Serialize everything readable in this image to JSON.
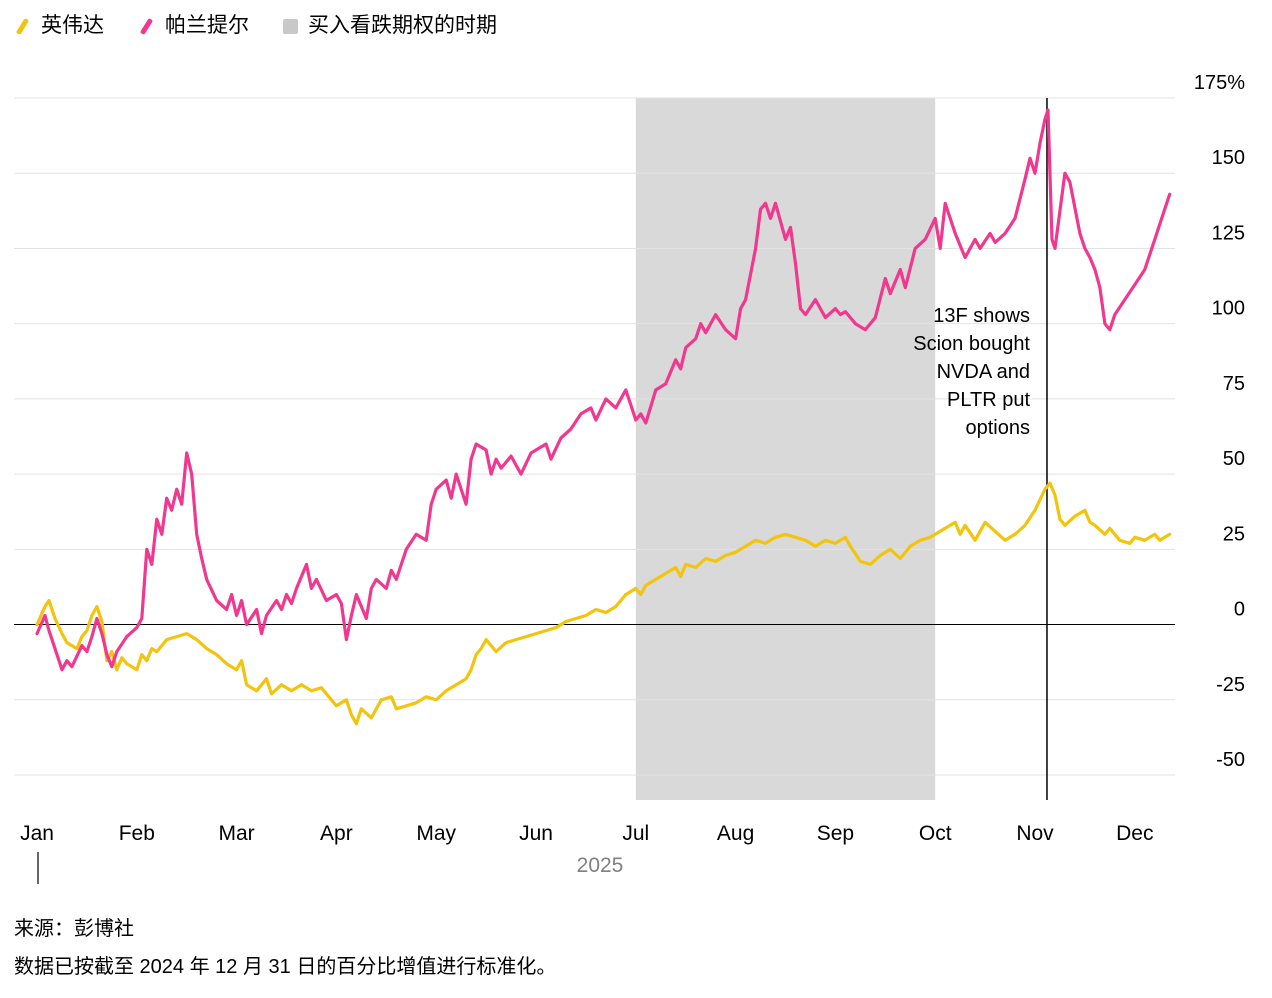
{
  "legend": {
    "items": [
      {
        "label": "英伟达",
        "color": "#f2c40e",
        "type": "line"
      },
      {
        "label": "帕兰提尔",
        "color": "#f0388f",
        "type": "line"
      },
      {
        "label": "买入看跌期权的时期",
        "color": "#c8c8c8",
        "type": "band"
      }
    ]
  },
  "annotation": {
    "lines": [
      "13F shows",
      "Scion bought",
      "NVDA and",
      "PLTR put",
      "options"
    ]
  },
  "footer": {
    "source": "来源：彭博社",
    "note": "数据已按截至 2024 年 12 月 31 日的百分比增值进行标准化。"
  },
  "chart_data": {
    "type": "line",
    "title": "",
    "x_axis": {
      "labels": [
        "Jan",
        "Feb",
        "Mar",
        "Apr",
        "May",
        "Jun",
        "Jul",
        "Aug",
        "Sep",
        "Oct",
        "Nov",
        "Dec"
      ],
      "year_label": "2025",
      "xlim": [
        0,
        11.4
      ]
    },
    "y_axis": {
      "ticks": [
        175,
        150,
        125,
        100,
        75,
        50,
        25,
        0,
        -25,
        -50
      ],
      "tick_labels": [
        "175%",
        "150",
        "125",
        "100",
        "75",
        "50",
        "25",
        "0",
        "-25",
        "-50"
      ],
      "ylim": [
        -58,
        175
      ]
    },
    "colors": {
      "band": "#d9d9d9",
      "grid": "#e3e3e3",
      "zero_line": "#000000",
      "event_line": "#000000",
      "year": "#808080"
    },
    "band": {
      "x_start": 6,
      "x_end": 9,
      "label": "买入看跌期权的时期"
    },
    "event_line": {
      "x": 10.12,
      "label": "13F shows Scion bought NVDA and PLTR put options"
    },
    "series": [
      {
        "name": "英伟达",
        "color": "#f2c40e",
        "points": [
          [
            0,
            0
          ],
          [
            0.08,
            6
          ],
          [
            0.12,
            8
          ],
          [
            0.18,
            2
          ],
          [
            0.25,
            -3
          ],
          [
            0.3,
            -6
          ],
          [
            0.4,
            -8
          ],
          [
            0.45,
            -4
          ],
          [
            0.5,
            -2
          ],
          [
            0.55,
            3
          ],
          [
            0.6,
            6
          ],
          [
            0.65,
            1
          ],
          [
            0.7,
            -12
          ],
          [
            0.75,
            -9
          ],
          [
            0.8,
            -15
          ],
          [
            0.85,
            -11
          ],
          [
            0.9,
            -13
          ],
          [
            1.0,
            -15
          ],
          [
            1.05,
            -10
          ],
          [
            1.1,
            -12
          ],
          [
            1.15,
            -8
          ],
          [
            1.2,
            -9
          ],
          [
            1.3,
            -5
          ],
          [
            1.4,
            -4
          ],
          [
            1.5,
            -3
          ],
          [
            1.6,
            -5
          ],
          [
            1.7,
            -8
          ],
          [
            1.8,
            -10
          ],
          [
            1.9,
            -13
          ],
          [
            2.0,
            -15
          ],
          [
            2.05,
            -12
          ],
          [
            2.1,
            -20
          ],
          [
            2.2,
            -22
          ],
          [
            2.3,
            -18
          ],
          [
            2.35,
            -23
          ],
          [
            2.45,
            -20
          ],
          [
            2.55,
            -22
          ],
          [
            2.65,
            -20
          ],
          [
            2.75,
            -22
          ],
          [
            2.85,
            -21
          ],
          [
            2.95,
            -25
          ],
          [
            3.0,
            -27
          ],
          [
            3.1,
            -25
          ],
          [
            3.15,
            -30
          ],
          [
            3.2,
            -33
          ],
          [
            3.25,
            -28
          ],
          [
            3.35,
            -31
          ],
          [
            3.45,
            -25
          ],
          [
            3.55,
            -24
          ],
          [
            3.6,
            -28
          ],
          [
            3.7,
            -27
          ],
          [
            3.8,
            -26
          ],
          [
            3.9,
            -24
          ],
          [
            4.0,
            -25
          ],
          [
            4.1,
            -22
          ],
          [
            4.2,
            -20
          ],
          [
            4.3,
            -18
          ],
          [
            4.35,
            -15
          ],
          [
            4.4,
            -10
          ],
          [
            4.45,
            -8
          ],
          [
            4.5,
            -5
          ],
          [
            4.55,
            -7
          ],
          [
            4.6,
            -9
          ],
          [
            4.7,
            -6
          ],
          [
            4.8,
            -5
          ],
          [
            4.9,
            -4
          ],
          [
            5.0,
            -3
          ],
          [
            5.1,
            -2
          ],
          [
            5.2,
            -1
          ],
          [
            5.3,
            1
          ],
          [
            5.4,
            2
          ],
          [
            5.5,
            3
          ],
          [
            5.6,
            5
          ],
          [
            5.7,
            4
          ],
          [
            5.8,
            6
          ],
          [
            5.9,
            10
          ],
          [
            6.0,
            12
          ],
          [
            6.05,
            10
          ],
          [
            6.1,
            13
          ],
          [
            6.2,
            15
          ],
          [
            6.3,
            17
          ],
          [
            6.4,
            19
          ],
          [
            6.45,
            16
          ],
          [
            6.5,
            20
          ],
          [
            6.6,
            19
          ],
          [
            6.7,
            22
          ],
          [
            6.8,
            21
          ],
          [
            6.9,
            23
          ],
          [
            7.0,
            24
          ],
          [
            7.1,
            26
          ],
          [
            7.2,
            28
          ],
          [
            7.3,
            27
          ],
          [
            7.4,
            29
          ],
          [
            7.5,
            30
          ],
          [
            7.6,
            29
          ],
          [
            7.7,
            28
          ],
          [
            7.8,
            26
          ],
          [
            7.9,
            28
          ],
          [
            8.0,
            27
          ],
          [
            8.1,
            29
          ],
          [
            8.15,
            26
          ],
          [
            8.25,
            21
          ],
          [
            8.35,
            20
          ],
          [
            8.45,
            23
          ],
          [
            8.55,
            25
          ],
          [
            8.65,
            22
          ],
          [
            8.75,
            26
          ],
          [
            8.85,
            28
          ],
          [
            8.95,
            29
          ],
          [
            9.0,
            30
          ],
          [
            9.1,
            32
          ],
          [
            9.2,
            34
          ],
          [
            9.25,
            30
          ],
          [
            9.3,
            33
          ],
          [
            9.4,
            28
          ],
          [
            9.5,
            34
          ],
          [
            9.6,
            31
          ],
          [
            9.7,
            28
          ],
          [
            9.8,
            30
          ],
          [
            9.9,
            33
          ],
          [
            10.0,
            38
          ],
          [
            10.1,
            45
          ],
          [
            10.15,
            47
          ],
          [
            10.2,
            43
          ],
          [
            10.25,
            35
          ],
          [
            10.3,
            33
          ],
          [
            10.4,
            36
          ],
          [
            10.5,
            38
          ],
          [
            10.55,
            34
          ],
          [
            10.6,
            33
          ],
          [
            10.7,
            30
          ],
          [
            10.75,
            32
          ],
          [
            10.85,
            28
          ],
          [
            10.95,
            27
          ],
          [
            11.0,
            29
          ],
          [
            11.1,
            28
          ],
          [
            11.2,
            30
          ],
          [
            11.25,
            28
          ],
          [
            11.35,
            30
          ]
        ]
      },
      {
        "name": "帕兰提尔",
        "color": "#f0388f",
        "points": [
          [
            0,
            -3
          ],
          [
            0.08,
            3
          ],
          [
            0.12,
            -2
          ],
          [
            0.18,
            -8
          ],
          [
            0.25,
            -15
          ],
          [
            0.3,
            -12
          ],
          [
            0.35,
            -14
          ],
          [
            0.45,
            -7
          ],
          [
            0.5,
            -9
          ],
          [
            0.55,
            -4
          ],
          [
            0.6,
            2
          ],
          [
            0.65,
            -3
          ],
          [
            0.7,
            -10
          ],
          [
            0.75,
            -14
          ],
          [
            0.8,
            -9
          ],
          [
            0.9,
            -4
          ],
          [
            1.0,
            -1
          ],
          [
            1.05,
            2
          ],
          [
            1.1,
            25
          ],
          [
            1.15,
            20
          ],
          [
            1.2,
            35
          ],
          [
            1.25,
            30
          ],
          [
            1.3,
            42
          ],
          [
            1.35,
            38
          ],
          [
            1.4,
            45
          ],
          [
            1.45,
            40
          ],
          [
            1.5,
            57
          ],
          [
            1.55,
            50
          ],
          [
            1.6,
            30
          ],
          [
            1.65,
            22
          ],
          [
            1.7,
            15
          ],
          [
            1.8,
            8
          ],
          [
            1.9,
            5
          ],
          [
            1.95,
            10
          ],
          [
            2.0,
            3
          ],
          [
            2.05,
            8
          ],
          [
            2.1,
            0
          ],
          [
            2.2,
            5
          ],
          [
            2.25,
            -3
          ],
          [
            2.3,
            3
          ],
          [
            2.4,
            8
          ],
          [
            2.45,
            5
          ],
          [
            2.5,
            10
          ],
          [
            2.55,
            7
          ],
          [
            2.6,
            12
          ],
          [
            2.7,
            20
          ],
          [
            2.75,
            12
          ],
          [
            2.8,
            15
          ],
          [
            2.9,
            8
          ],
          [
            3.0,
            10
          ],
          [
            3.05,
            7
          ],
          [
            3.1,
            -5
          ],
          [
            3.15,
            3
          ],
          [
            3.2,
            10
          ],
          [
            3.3,
            2
          ],
          [
            3.35,
            12
          ],
          [
            3.4,
            15
          ],
          [
            3.5,
            12
          ],
          [
            3.55,
            18
          ],
          [
            3.6,
            15
          ],
          [
            3.7,
            25
          ],
          [
            3.8,
            30
          ],
          [
            3.9,
            28
          ],
          [
            3.95,
            40
          ],
          [
            4.0,
            45
          ],
          [
            4.1,
            48
          ],
          [
            4.15,
            42
          ],
          [
            4.2,
            50
          ],
          [
            4.3,
            40
          ],
          [
            4.35,
            55
          ],
          [
            4.4,
            60
          ],
          [
            4.5,
            58
          ],
          [
            4.55,
            50
          ],
          [
            4.6,
            55
          ],
          [
            4.65,
            52
          ],
          [
            4.75,
            56
          ],
          [
            4.85,
            50
          ],
          [
            4.95,
            57
          ],
          [
            5.0,
            58
          ],
          [
            5.1,
            60
          ],
          [
            5.15,
            55
          ],
          [
            5.25,
            62
          ],
          [
            5.35,
            65
          ],
          [
            5.45,
            70
          ],
          [
            5.55,
            72
          ],
          [
            5.6,
            68
          ],
          [
            5.7,
            75
          ],
          [
            5.8,
            72
          ],
          [
            5.9,
            78
          ],
          [
            6.0,
            68
          ],
          [
            6.05,
            70
          ],
          [
            6.1,
            67
          ],
          [
            6.2,
            78
          ],
          [
            6.3,
            80
          ],
          [
            6.4,
            88
          ],
          [
            6.45,
            85
          ],
          [
            6.5,
            92
          ],
          [
            6.6,
            95
          ],
          [
            6.65,
            100
          ],
          [
            6.7,
            97
          ],
          [
            6.8,
            103
          ],
          [
            6.9,
            98
          ],
          [
            7.0,
            95
          ],
          [
            7.05,
            105
          ],
          [
            7.1,
            108
          ],
          [
            7.2,
            125
          ],
          [
            7.25,
            138
          ],
          [
            7.3,
            140
          ],
          [
            7.35,
            135
          ],
          [
            7.4,
            140
          ],
          [
            7.5,
            128
          ],
          [
            7.55,
            132
          ],
          [
            7.6,
            120
          ],
          [
            7.65,
            105
          ],
          [
            7.7,
            103
          ],
          [
            7.8,
            108
          ],
          [
            7.9,
            102
          ],
          [
            8.0,
            105
          ],
          [
            8.05,
            103
          ],
          [
            8.1,
            104
          ],
          [
            8.2,
            100
          ],
          [
            8.3,
            98
          ],
          [
            8.4,
            102
          ],
          [
            8.5,
            115
          ],
          [
            8.55,
            110
          ],
          [
            8.65,
            118
          ],
          [
            8.7,
            112
          ],
          [
            8.8,
            125
          ],
          [
            8.9,
            128
          ],
          [
            9.0,
            135
          ],
          [
            9.05,
            125
          ],
          [
            9.1,
            140
          ],
          [
            9.2,
            130
          ],
          [
            9.3,
            122
          ],
          [
            9.4,
            128
          ],
          [
            9.45,
            125
          ],
          [
            9.55,
            130
          ],
          [
            9.6,
            127
          ],
          [
            9.7,
            130
          ],
          [
            9.8,
            135
          ],
          [
            9.9,
            148
          ],
          [
            9.95,
            155
          ],
          [
            10.0,
            150
          ],
          [
            10.05,
            160
          ],
          [
            10.1,
            168
          ],
          [
            10.13,
            171
          ],
          [
            10.17,
            128
          ],
          [
            10.2,
            125
          ],
          [
            10.3,
            150
          ],
          [
            10.35,
            147
          ],
          [
            10.45,
            130
          ],
          [
            10.5,
            125
          ],
          [
            10.55,
            122
          ],
          [
            10.6,
            118
          ],
          [
            10.65,
            112
          ],
          [
            10.7,
            100
          ],
          [
            10.75,
            98
          ],
          [
            10.8,
            103
          ],
          [
            10.9,
            108
          ],
          [
            11.0,
            113
          ],
          [
            11.1,
            118
          ],
          [
            11.2,
            128
          ],
          [
            11.3,
            138
          ],
          [
            11.35,
            143
          ]
        ]
      }
    ]
  }
}
